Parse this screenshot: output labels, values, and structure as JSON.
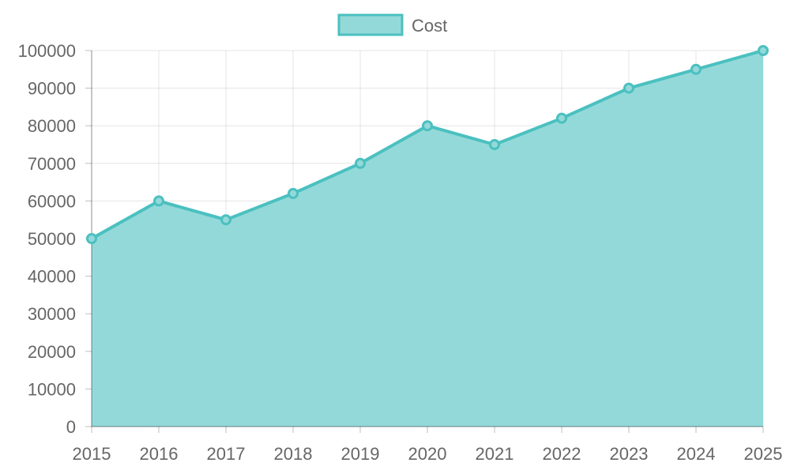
{
  "chart_data": {
    "type": "area",
    "x": [
      "2015",
      "2016",
      "2017",
      "2018",
      "2019",
      "2020",
      "2021",
      "2022",
      "2023",
      "2024",
      "2025"
    ],
    "series": [
      {
        "name": "Cost",
        "values": [
          50000,
          60000,
          55000,
          62000,
          70000,
          80000,
          75000,
          82000,
          90000,
          95000,
          100000
        ],
        "line_color": "#4BC0C0",
        "fill_color": "#94D9D9"
      }
    ],
    "ylim": [
      0,
      100000
    ],
    "y_ticks": [
      0,
      10000,
      20000,
      30000,
      40000,
      50000,
      60000,
      70000,
      80000,
      90000,
      100000
    ],
    "grid": true,
    "legend_position": "top-center"
  }
}
